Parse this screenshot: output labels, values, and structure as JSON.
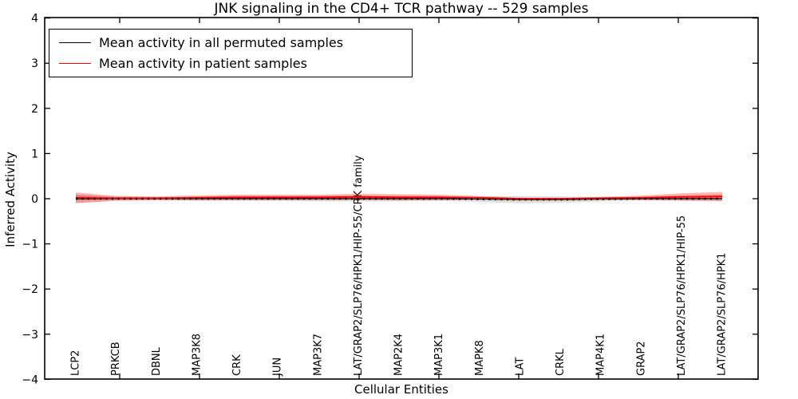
{
  "figure": {
    "title": "JNK signaling in the CD4+ TCR pathway -- 529 samples",
    "xlabel": "Cellular Entities",
    "ylabel": "Inferred Activity"
  },
  "legend": {
    "position": "upper left",
    "items": [
      {
        "label": "Mean activity in all permuted samples",
        "color": "#000000"
      },
      {
        "label": "Mean activity in patient samples",
        "color": "#ff0000"
      }
    ]
  },
  "chart_data": {
    "type": "line",
    "title": "JNK signaling in the CD4+ TCR pathway -- 529 samples",
    "xlabel": "Cellular Entities",
    "ylabel": "Inferred Activity",
    "ylim": [
      -4,
      4
    ],
    "y_ticks": [
      4,
      3,
      2,
      1,
      0,
      -1,
      -2,
      -3,
      -4
    ],
    "grid": false,
    "legend_position": "upper left",
    "band_colors": {
      "permuted": "rgba(0,0,0,0.13)",
      "patient": "rgba(255,0,0,0.28)"
    },
    "categories": [
      "LCP2",
      "PRKCB",
      "DBNL",
      "MAP3K8",
      "CRK",
      "JUN",
      "MAP3K7",
      "LAT/GRAP2/SLP76/HPK1/HIP-55/CRK family",
      "MAP2K4",
      "MAP3K1",
      "MAPK8",
      "LAT",
      "CRKL",
      "MAP4K1",
      "GRAP2",
      "LAT/GRAP2/SLP76/HPK1/HIP-55",
      "LAT/GRAP2/SLP76/HPK1"
    ],
    "series": [
      {
        "name": "Mean activity in all permuted samples",
        "color": "#000000",
        "values": [
          0.0,
          0.0,
          0.0,
          0.0,
          0.0,
          0.0,
          0.0,
          0.0,
          0.0,
          0.0,
          -0.01,
          -0.02,
          -0.02,
          -0.01,
          0.0,
          0.0,
          0.0
        ],
        "band_halfwidth": [
          0.1,
          0.05,
          0.04,
          0.05,
          0.05,
          0.05,
          0.06,
          0.06,
          0.06,
          0.05,
          0.06,
          0.08,
          0.07,
          0.05,
          0.04,
          0.05,
          0.06
        ]
      },
      {
        "name": "Mean activity in patient samples",
        "color": "#ff0000",
        "values": [
          0.02,
          0.01,
          0.01,
          0.02,
          0.03,
          0.03,
          0.03,
          0.04,
          0.03,
          0.03,
          0.02,
          0.0,
          0.0,
          0.01,
          0.02,
          0.04,
          0.05
        ],
        "band_halfwidth": [
          0.12,
          0.05,
          0.04,
          0.05,
          0.06,
          0.06,
          0.06,
          0.07,
          0.07,
          0.06,
          0.04,
          0.02,
          0.02,
          0.03,
          0.05,
          0.08,
          0.1
        ]
      }
    ]
  }
}
